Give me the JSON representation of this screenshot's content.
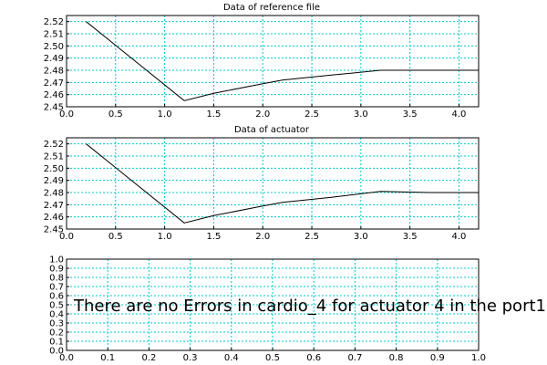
{
  "colors": {
    "background": "#ffffff",
    "grid": "#00c8c8",
    "line": "#000000",
    "frame": "#000000"
  },
  "chart_data": [
    {
      "type": "line",
      "title": "Data of reference file",
      "grid": true,
      "xlim": [
        0.0,
        4.2
      ],
      "ylim": [
        2.45,
        2.525
      ],
      "xticks": [
        "0.0",
        "0.5",
        "1.0",
        "1.5",
        "2.0",
        "2.5",
        "3.0",
        "3.5",
        "4.0"
      ],
      "yticks": [
        "2.45",
        "2.46",
        "2.47",
        "2.48",
        "2.49",
        "2.50",
        "2.51",
        "2.52"
      ],
      "series": [
        {
          "x": [
            0.2,
            1.2,
            1.5,
            2.0,
            2.2,
            2.7,
            3.2,
            3.7,
            4.2
          ],
          "y": [
            2.52,
            2.455,
            2.461,
            2.469,
            2.472,
            2.476,
            2.48,
            2.48,
            2.48
          ]
        }
      ]
    },
    {
      "type": "line",
      "title": "Data of actuator",
      "grid": true,
      "xlim": [
        0.0,
        4.2
      ],
      "ylim": [
        2.45,
        2.525
      ],
      "xticks": [
        "0.0",
        "0.5",
        "1.0",
        "1.5",
        "2.0",
        "2.5",
        "3.0",
        "3.5",
        "4.0"
      ],
      "yticks": [
        "2.45",
        "2.46",
        "2.47",
        "2.48",
        "2.49",
        "2.50",
        "2.51",
        "2.52"
      ],
      "series": [
        {
          "x": [
            0.2,
            1.2,
            1.5,
            2.0,
            2.2,
            2.7,
            3.2,
            3.7,
            4.2
          ],
          "y": [
            2.52,
            2.455,
            2.461,
            2.469,
            2.472,
            2.476,
            2.481,
            2.48,
            2.48
          ]
        }
      ]
    },
    {
      "type": "line",
      "title": "",
      "grid": true,
      "xlim": [
        0.0,
        1.0
      ],
      "ylim": [
        0.0,
        1.0
      ],
      "xticks": [
        "0.0",
        "0.1",
        "0.2",
        "0.3",
        "0.4",
        "0.5",
        "0.6",
        "0.7",
        "0.8",
        "0.9",
        "1.0"
      ],
      "yticks": [
        "0.0",
        "0.1",
        "0.2",
        "0.3",
        "0.4",
        "0.5",
        "0.6",
        "0.7",
        "0.8",
        "0.9",
        "1.0"
      ],
      "series": [],
      "annotation": "There are no Errors in cardio_4 for actuator 4 in the port1"
    }
  ]
}
